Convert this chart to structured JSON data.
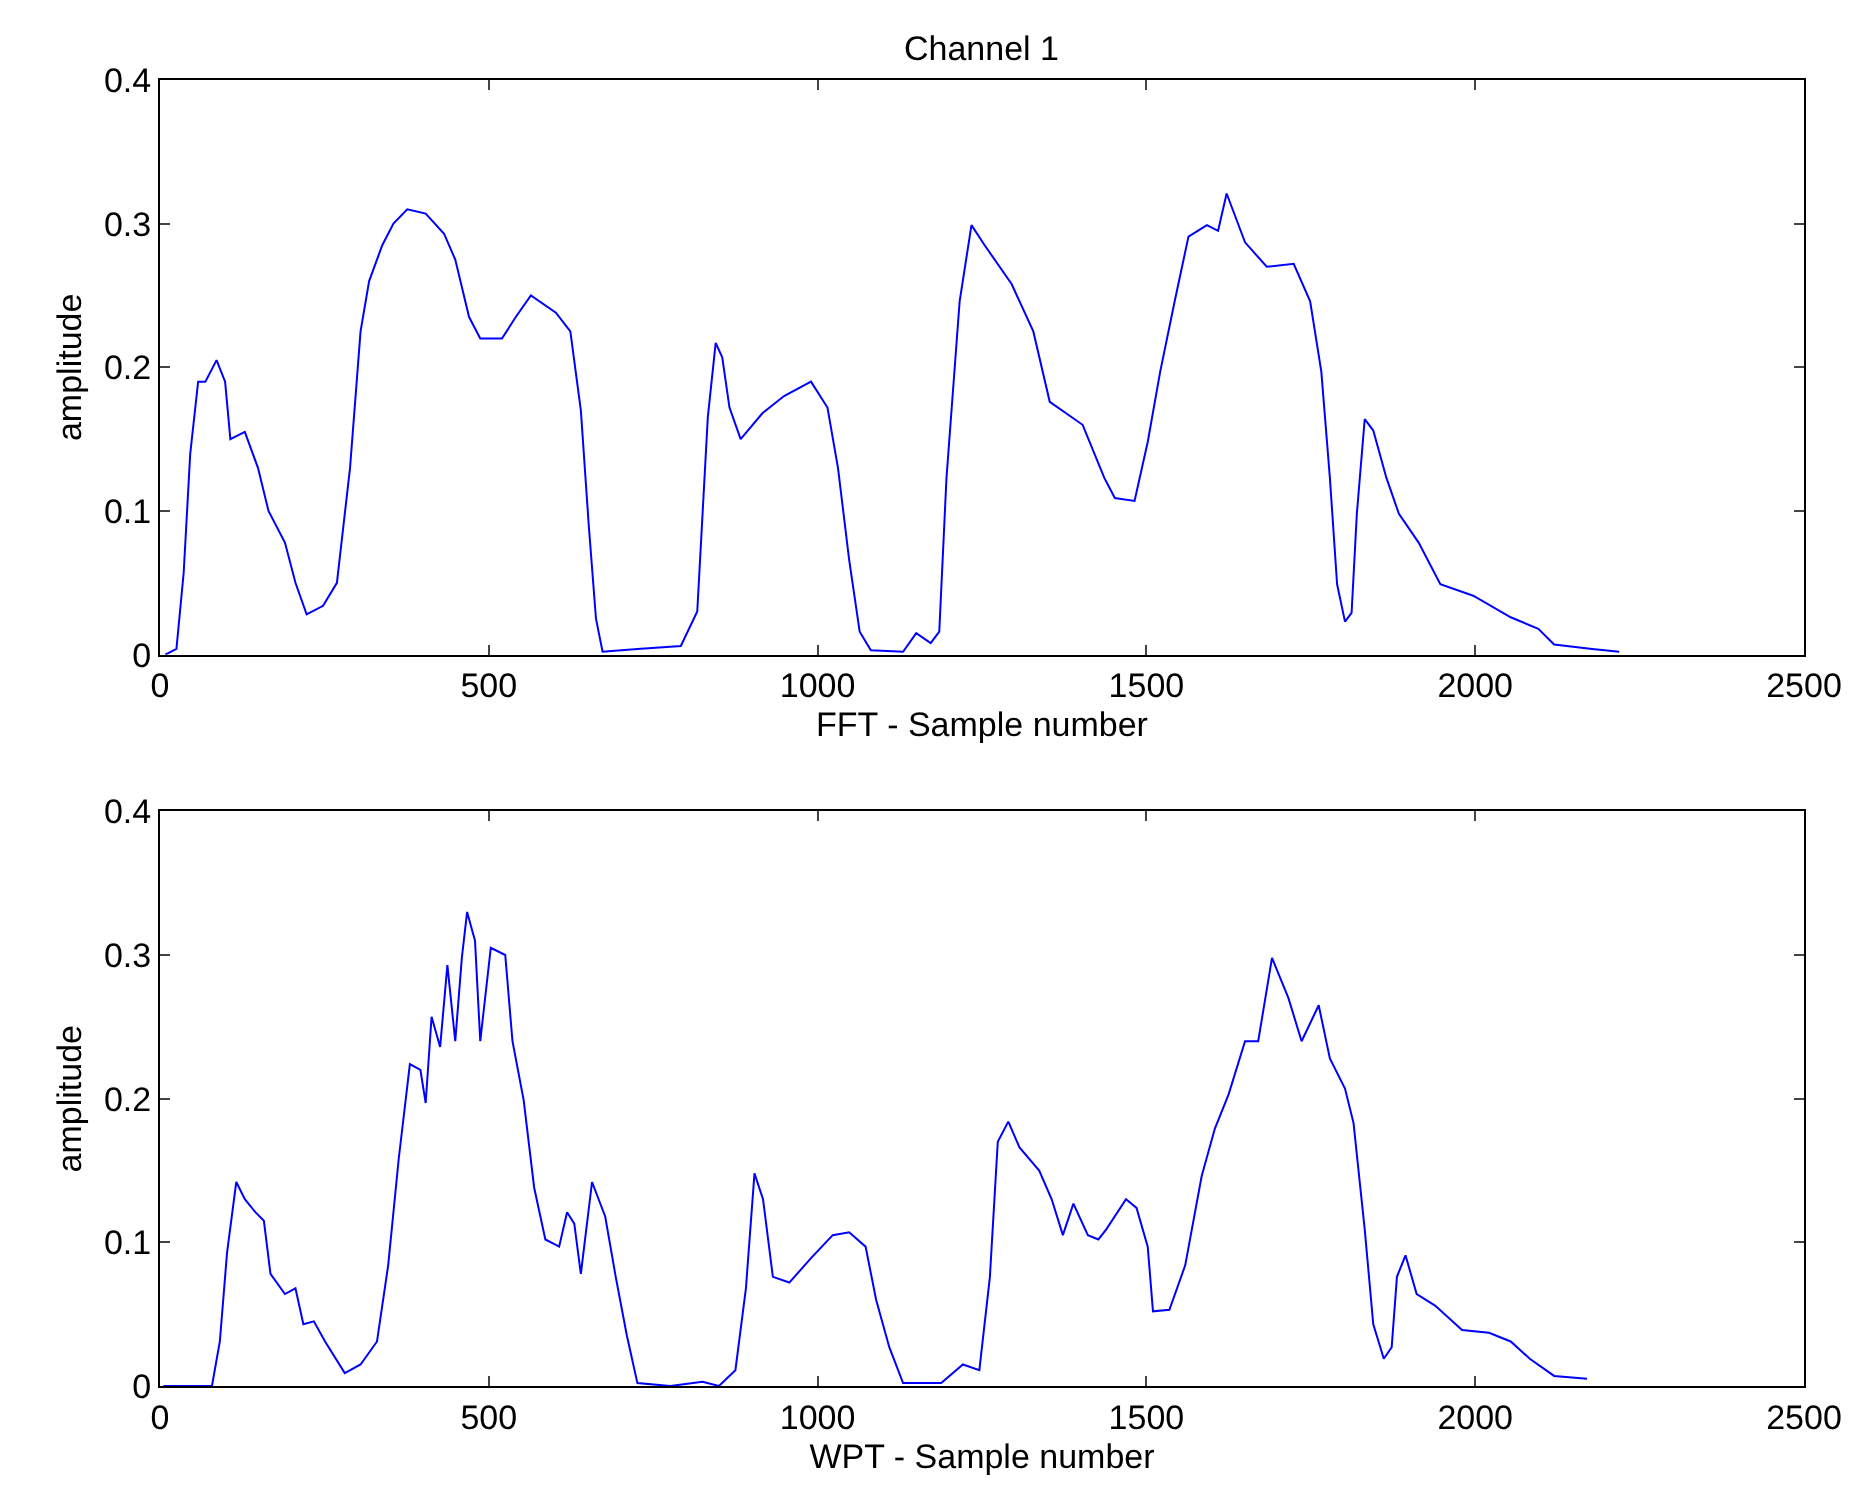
{
  "chart_data": [
    {
      "type": "line",
      "title": "Channel 1",
      "xlabel": "FFT - Sample number",
      "ylabel": "amplitude",
      "xlim": [
        0,
        2500
      ],
      "xticks": [
        0,
        500,
        1000,
        1500,
        2000,
        2500
      ],
      "ylim": [
        0,
        0.4
      ],
      "yticks": [
        0,
        0.1,
        0.2,
        0.3,
        0.4
      ],
      "marker": "none",
      "line_style": "solid",
      "series": [
        {
          "color": "#0000ff",
          "x": [
            8,
            25,
            36,
            46,
            58,
            69,
            86,
            99,
            107,
            129,
            149,
            165,
            190,
            206,
            223,
            248,
            269,
            289,
            305,
            318,
            338,
            355,
            376,
            404,
            432,
            449,
            470,
            487,
            520,
            541,
            564,
            602,
            624,
            640,
            652,
            663,
            673,
            726,
            792,
            817,
            833,
            845,
            855,
            866,
            883,
            916,
            949,
            990,
            1015,
            1031,
            1048,
            1064,
            1081,
            1130,
            1150,
            1172,
            1185,
            1196,
            1216,
            1234,
            1254,
            1295,
            1328,
            1353,
            1403,
            1436,
            1452,
            1482,
            1502,
            1521,
            1543,
            1564,
            1592,
            1609,
            1622,
            1650,
            1683,
            1724,
            1749,
            1766,
            1779,
            1790,
            1802,
            1812,
            1820,
            1832,
            1845,
            1865,
            1884,
            1914,
            1947,
            1997,
            2054,
            2096,
            2120,
            2178,
            2219
          ],
          "values": [
            0,
            0.004,
            0.057,
            0.14,
            0.19,
            0.19,
            0.205,
            0.19,
            0.15,
            0.155,
            0.13,
            0.1,
            0.078,
            0.05,
            0.028,
            0.034,
            0.05,
            0.13,
            0.225,
            0.26,
            0.285,
            0.3,
            0.31,
            0.307,
            0.293,
            0.275,
            0.235,
            0.22,
            0.22,
            0.235,
            0.25,
            0.238,
            0.225,
            0.17,
            0.09,
            0.025,
            0.002,
            0.004,
            0.006,
            0.03,
            0.165,
            0.217,
            0.207,
            0.172,
            0.15,
            0.168,
            0.18,
            0.19,
            0.172,
            0.13,
            0.066,
            0.016,
            0.003,
            0.002,
            0.015,
            0.008,
            0.016,
            0.123,
            0.246,
            0.299,
            0.285,
            0.258,
            0.225,
            0.176,
            0.16,
            0.123,
            0.109,
            0.107,
            0.148,
            0.197,
            0.246,
            0.291,
            0.299,
            0.295,
            0.321,
            0.287,
            0.27,
            0.272,
            0.246,
            0.197,
            0.123,
            0.049,
            0.023,
            0.029,
            0.098,
            0.164,
            0.156,
            0.123,
            0.098,
            0.078,
            0.049,
            0.041,
            0.026,
            0.018,
            0.007,
            0.004,
            0.002
          ]
        }
      ]
    },
    {
      "type": "line",
      "xlabel": "WPT - Sample number",
      "ylabel": "amplitude",
      "xlim": [
        0,
        2500
      ],
      "xticks": [
        0,
        500,
        1000,
        1500,
        2000,
        2500
      ],
      "ylim": [
        0,
        0.4
      ],
      "yticks": [
        0,
        0.1,
        0.2,
        0.3,
        0.4
      ],
      "marker": "none",
      "line_style": "solid",
      "series": [
        {
          "color": "#0000ff",
          "x": [
            5,
            79,
            91,
            102,
            116,
            129,
            145,
            158,
            168,
            190,
            206,
            218,
            234,
            251,
            281,
            305,
            330,
            347,
            363,
            380,
            396,
            404,
            413,
            426,
            437,
            449,
            459,
            467,
            479,
            487,
            503,
            525,
            536,
            553,
            569,
            586,
            607,
            619,
            630,
            640,
            657,
            677,
            693,
            710,
            726,
            776,
            825,
            850,
            875,
            891,
            904,
            917,
            932,
            957,
            990,
            1023,
            1048,
            1073,
            1089,
            1109,
            1130,
            1188,
            1221,
            1246,
            1262,
            1274,
            1290,
            1307,
            1337,
            1356,
            1373,
            1389,
            1411,
            1427,
            1439,
            1469,
            1485,
            1502,
            1510,
            1535,
            1559,
            1584,
            1604,
            1625,
            1650,
            1670,
            1691,
            1716,
            1736,
            1762,
            1779,
            1802,
            1815,
            1832,
            1845,
            1861,
            1873,
            1881,
            1894,
            1911,
            1939,
            1980,
            2021,
            2054,
            2083,
            2120,
            2170
          ],
          "values": [
            0,
            0,
            0.031,
            0.093,
            0.142,
            0.13,
            0.121,
            0.115,
            0.078,
            0.064,
            0.068,
            0.043,
            0.045,
            0.031,
            0.009,
            0.015,
            0.031,
            0.084,
            0.158,
            0.224,
            0.22,
            0.197,
            0.257,
            0.236,
            0.293,
            0.24,
            0.298,
            0.33,
            0.31,
            0.24,
            0.305,
            0.3,
            0.24,
            0.199,
            0.138,
            0.102,
            0.097,
            0.121,
            0.113,
            0.078,
            0.142,
            0.118,
            0.076,
            0.035,
            0.002,
            0,
            0.003,
            0,
            0.011,
            0.068,
            0.148,
            0.13,
            0.076,
            0.072,
            0.089,
            0.105,
            0.107,
            0.097,
            0.06,
            0.027,
            0.002,
            0.002,
            0.015,
            0.011,
            0.076,
            0.17,
            0.184,
            0.166,
            0.15,
            0.13,
            0.105,
            0.127,
            0.105,
            0.102,
            0.109,
            0.13,
            0.124,
            0.097,
            0.052,
            0.053,
            0.084,
            0.146,
            0.179,
            0.203,
            0.24,
            0.24,
            0.298,
            0.27,
            0.24,
            0.265,
            0.228,
            0.207,
            0.183,
            0.109,
            0.043,
            0.019,
            0.027,
            0.076,
            0.091,
            0.064,
            0.056,
            0.039,
            0.037,
            0.031,
            0.019,
            0.007,
            0.005
          ]
        }
      ]
    }
  ]
}
